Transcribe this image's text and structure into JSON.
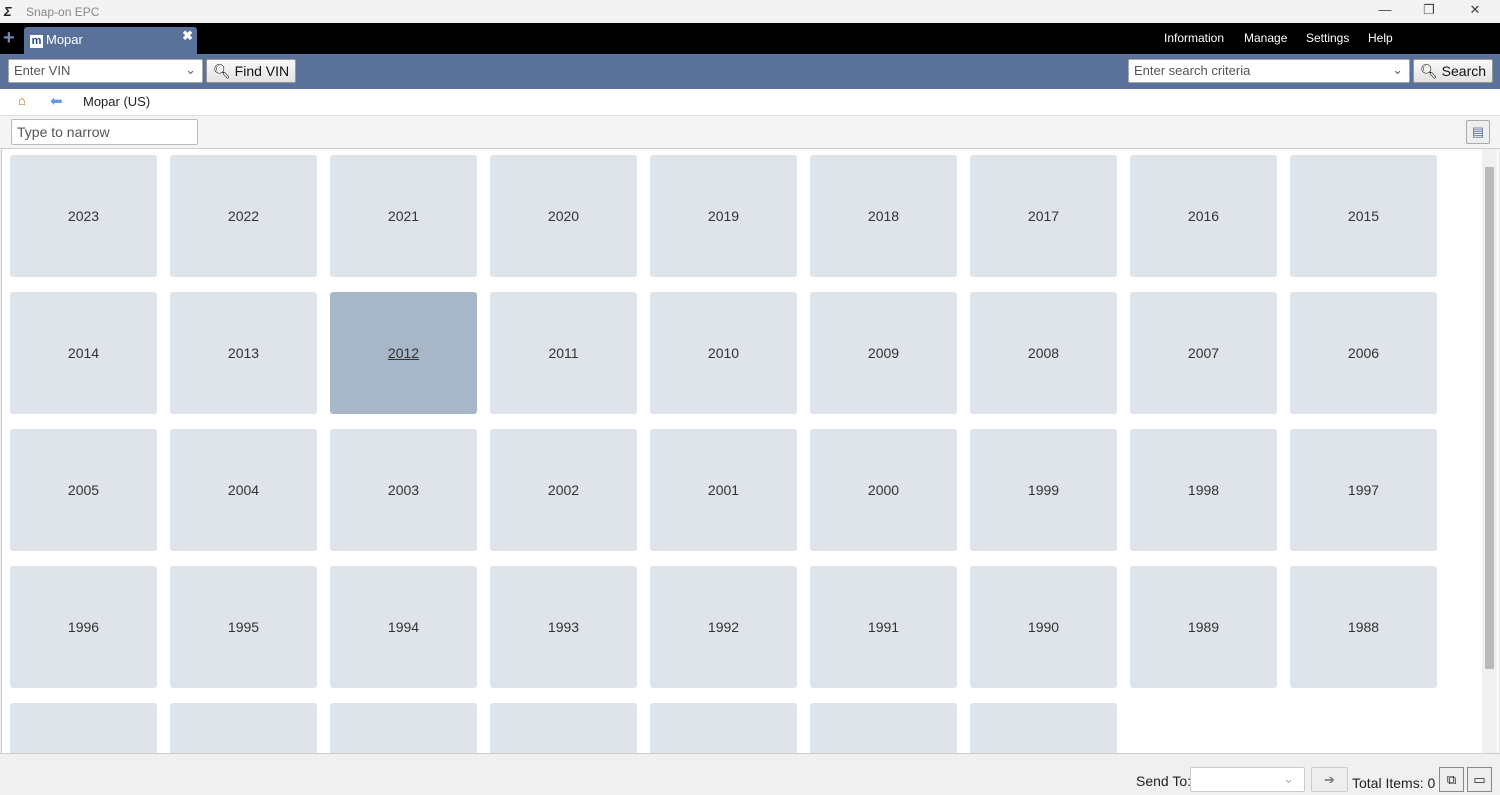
{
  "window": {
    "title": "Snap-on EPC"
  },
  "tabs": [
    {
      "label": "Mopar"
    }
  ],
  "menu": [
    "Information",
    "Manage",
    "Settings",
    "Help"
  ],
  "toolbar": {
    "vin_placeholder": "Enter VIN",
    "find_vin": "Find VIN",
    "search_placeholder": "Enter search criteria",
    "search": "Search"
  },
  "breadcrumb": {
    "label": "Mopar (US)"
  },
  "filter": {
    "placeholder": "Type to narrow"
  },
  "years": [
    "2023",
    "2022",
    "2021",
    "2020",
    "2019",
    "2018",
    "2017",
    "2016",
    "2015",
    "2014",
    "2013",
    "2012",
    "2011",
    "2010",
    "2009",
    "2008",
    "2007",
    "2006",
    "2005",
    "2004",
    "2003",
    "2002",
    "2001",
    "2000",
    "1999",
    "1998",
    "1997",
    "1996",
    "1995",
    "1994",
    "1993",
    "1992",
    "1991",
    "1990",
    "1989",
    "1988"
  ],
  "selected_year": "2012",
  "footer": {
    "send_to": "Send To:",
    "total_items": "Total Items: 0"
  }
}
